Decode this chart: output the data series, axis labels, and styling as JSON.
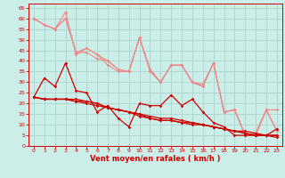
{
  "background_color": "#cceee8",
  "grid_color": "#aad4ce",
  "x_label": "Vent moyen/en rafales ( km/h )",
  "xlabel_color": "#cc0000",
  "xlabel_fontsize": 6,
  "ytick_color": "#cc0000",
  "xtick_color": "#cc0000",
  "ylim": [
    0,
    67
  ],
  "xlim": [
    -0.5,
    23.5
  ],
  "yticks": [
    0,
    5,
    10,
    15,
    20,
    25,
    30,
    35,
    40,
    45,
    50,
    55,
    60,
    65
  ],
  "xticks": [
    0,
    1,
    2,
    3,
    4,
    5,
    6,
    7,
    8,
    9,
    10,
    11,
    12,
    13,
    14,
    15,
    16,
    17,
    18,
    19,
    20,
    21,
    22,
    23
  ],
  "lines_light": [
    {
      "x": [
        0,
        1,
        2,
        3,
        4,
        5,
        6,
        7,
        8,
        9,
        10,
        11,
        12,
        13,
        14,
        15,
        16,
        17,
        18,
        19,
        20,
        21,
        22,
        23
      ],
      "y": [
        60,
        57,
        55,
        63,
        43,
        46,
        43,
        38,
        35,
        35,
        51,
        35,
        30,
        38,
        38,
        30,
        29,
        39,
        16,
        17,
        5,
        5,
        17,
        7
      ]
    },
    {
      "x": [
        0,
        1,
        2,
        3,
        4,
        5,
        6,
        7,
        8,
        9,
        10,
        11,
        12,
        13,
        14,
        15,
        16,
        17,
        18,
        19,
        20,
        21,
        22,
        23
      ],
      "y": [
        60,
        57,
        55,
        60,
        44,
        46,
        43,
        40,
        36,
        35,
        51,
        36,
        30,
        38,
        38,
        30,
        28,
        39,
        16,
        17,
        5,
        6,
        17,
        17
      ]
    },
    {
      "x": [
        0,
        1,
        2,
        3,
        4,
        5,
        6,
        7,
        8,
        9,
        10,
        11,
        12,
        13,
        14,
        15,
        16,
        17,
        18,
        19,
        20,
        21,
        22,
        23
      ],
      "y": [
        60,
        57,
        55,
        60,
        44,
        44,
        41,
        40,
        36,
        35,
        51,
        36,
        30,
        38,
        38,
        30,
        28,
        39,
        16,
        17,
        5,
        6,
        17,
        7
      ]
    }
  ],
  "lines_dark": [
    {
      "x": [
        0,
        1,
        2,
        3,
        4,
        5,
        6,
        7,
        8,
        9,
        10,
        11,
        12,
        13,
        14,
        15,
        16,
        17,
        18,
        19,
        20,
        21,
        22,
        23
      ],
      "y": [
        23,
        32,
        28,
        39,
        26,
        25,
        16,
        19,
        13,
        9,
        20,
        19,
        19,
        24,
        19,
        22,
        16,
        11,
        9,
        5,
        5,
        5,
        5,
        8
      ]
    },
    {
      "x": [
        0,
        1,
        2,
        3,
        4,
        5,
        6,
        7,
        8,
        9,
        10,
        11,
        12,
        13,
        14,
        15,
        16,
        17,
        18,
        19,
        20,
        21,
        22,
        23
      ],
      "y": [
        23,
        22,
        22,
        22,
        21,
        21,
        20,
        18,
        17,
        16,
        15,
        14,
        13,
        13,
        12,
        11,
        10,
        9,
        8,
        7,
        7,
        6,
        5,
        5
      ]
    },
    {
      "x": [
        0,
        1,
        2,
        3,
        4,
        5,
        6,
        7,
        8,
        9,
        10,
        11,
        12,
        13,
        14,
        15,
        16,
        17,
        18,
        19,
        20,
        21,
        22,
        23
      ],
      "y": [
        23,
        22,
        22,
        22,
        21,
        20,
        19,
        18,
        17,
        16,
        15,
        13,
        12,
        12,
        11,
        11,
        10,
        9,
        8,
        7,
        6,
        5,
        5,
        5
      ]
    },
    {
      "x": [
        0,
        1,
        2,
        3,
        4,
        5,
        6,
        7,
        8,
        9,
        10,
        11,
        12,
        13,
        14,
        15,
        16,
        17,
        18,
        19,
        20,
        21,
        22,
        23
      ],
      "y": [
        23,
        22,
        22,
        22,
        22,
        21,
        20,
        18,
        17,
        16,
        14,
        13,
        12,
        12,
        11,
        10,
        10,
        9,
        8,
        7,
        6,
        5,
        5,
        4
      ]
    }
  ],
  "color_light": "#f08888",
  "color_dark": "#cc0000",
  "marker": "D",
  "markersize": 1.8,
  "linewidth_light": 0.8,
  "linewidth_dark": 0.9
}
